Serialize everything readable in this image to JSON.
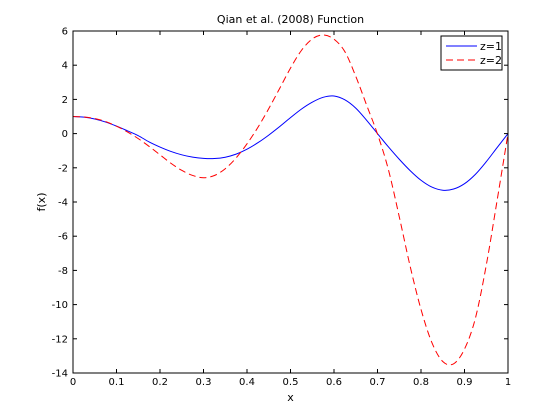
{
  "chart_data": {
    "type": "line",
    "title": "Qian et al. (2008) Function",
    "xlabel": "x",
    "ylabel": "f(x)",
    "xlim": [
      0,
      1
    ],
    "ylim": [
      -14,
      6
    ],
    "xticks": [
      0,
      0.1,
      0.2,
      0.3,
      0.4,
      0.5,
      0.6,
      0.7,
      0.8,
      0.9,
      1
    ],
    "xtick_labels": [
      "0",
      "0.1",
      "0.2",
      "0.3",
      "0.4",
      "0.5",
      "0.6",
      "0.7",
      "0.8",
      "0.9",
      "1"
    ],
    "yticks": [
      -14,
      -12,
      -10,
      -8,
      -6,
      -4,
      -2,
      0,
      2,
      4,
      6
    ],
    "ytick_labels": [
      "-14",
      "-12",
      "-10",
      "-8",
      "-6",
      "-4",
      "-2",
      "0",
      "2",
      "4",
      "6"
    ],
    "grid": false,
    "legend_position": "top-right",
    "x": [
      0,
      0.025,
      0.05,
      0.075,
      0.1,
      0.125,
      0.15,
      0.175,
      0.2,
      0.225,
      0.25,
      0.275,
      0.3,
      0.325,
      0.35,
      0.375,
      0.4,
      0.425,
      0.45,
      0.475,
      0.5,
      0.525,
      0.55,
      0.575,
      0.6,
      0.625,
      0.65,
      0.675,
      0.7,
      0.725,
      0.75,
      0.775,
      0.8,
      0.825,
      0.85,
      0.875,
      0.9,
      0.925,
      0.95,
      0.975,
      1
    ],
    "series": [
      {
        "name": "z=1",
        "color": "#0000ff",
        "dash": "solid",
        "values": [
          1.0,
          0.96,
          0.852,
          0.674,
          0.437,
          0.164,
          -0.12,
          -0.487,
          -0.786,
          -1.042,
          -1.241,
          -1.378,
          -1.45,
          -1.459,
          -1.381,
          -1.202,
          -0.914,
          -0.534,
          -0.087,
          0.41,
          0.933,
          1.432,
          1.837,
          2.121,
          2.2,
          1.974,
          1.49,
          0.779,
          -0.002,
          -0.773,
          -1.499,
          -2.163,
          -2.728,
          -3.128,
          -3.311,
          -3.241,
          -2.928,
          -2.383,
          -1.644,
          -0.816,
          0.0
        ]
      },
      {
        "name": "z=2",
        "color": "#ff0000",
        "dash": "dashed",
        "values": [
          1.0,
          0.97,
          0.88,
          0.703,
          0.433,
          0.1,
          -0.294,
          -0.75,
          -1.24,
          -1.735,
          -2.15,
          -2.448,
          -2.581,
          -2.45,
          -2.055,
          -1.42,
          -0.598,
          0.363,
          1.46,
          2.64,
          3.83,
          4.86,
          5.535,
          5.77,
          5.52,
          4.79,
          3.35,
          1.665,
          -0.025,
          -2.1,
          -4.86,
          -7.755,
          -10.28,
          -12.22,
          -13.33,
          -13.46,
          -12.6,
          -10.8,
          -7.7,
          -3.9,
          0.0
        ]
      }
    ]
  }
}
